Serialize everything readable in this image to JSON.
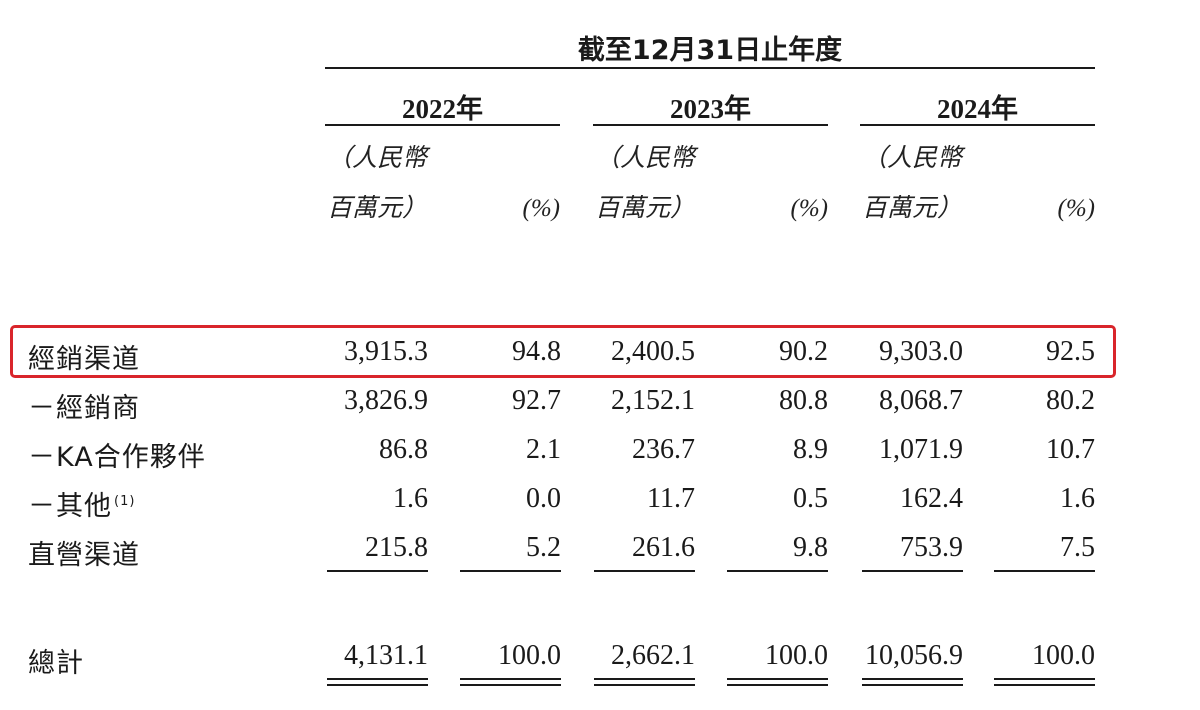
{
  "header": {
    "period": "截至12月31日止年度",
    "years": [
      "2022年",
      "2023年",
      "2024年"
    ],
    "unit_line1": "（人民幣",
    "unit_line2": "百萬元）",
    "pct_label": "(%)"
  },
  "rows": [
    {
      "label": "經銷渠道",
      "note": "",
      "values": [
        "3,915.3",
        "94.8",
        "2,400.5",
        "90.2",
        "9,303.0",
        "92.5"
      ]
    },
    {
      "label": "－經銷商",
      "note": "",
      "values": [
        "3,826.9",
        "92.7",
        "2,152.1",
        "80.8",
        "8,068.7",
        "80.2"
      ]
    },
    {
      "label": "－KA合作夥伴",
      "note": "",
      "values": [
        "86.8",
        "2.1",
        "236.7",
        "8.9",
        "1,071.9",
        "10.7"
      ]
    },
    {
      "label": "－其他",
      "note": "(1)",
      "values": [
        "1.6",
        "0.0",
        "11.7",
        "0.5",
        "162.4",
        "1.6"
      ]
    },
    {
      "label": "直營渠道",
      "note": "",
      "values": [
        "215.8",
        "5.2",
        "261.6",
        "9.8",
        "753.9",
        "7.5"
      ]
    }
  ],
  "total": {
    "label": "總計",
    "values": [
      "4,131.1",
      "100.0",
      "2,662.1",
      "100.0",
      "10,056.9",
      "100.0"
    ]
  },
  "highlight_color": "#d9252b"
}
